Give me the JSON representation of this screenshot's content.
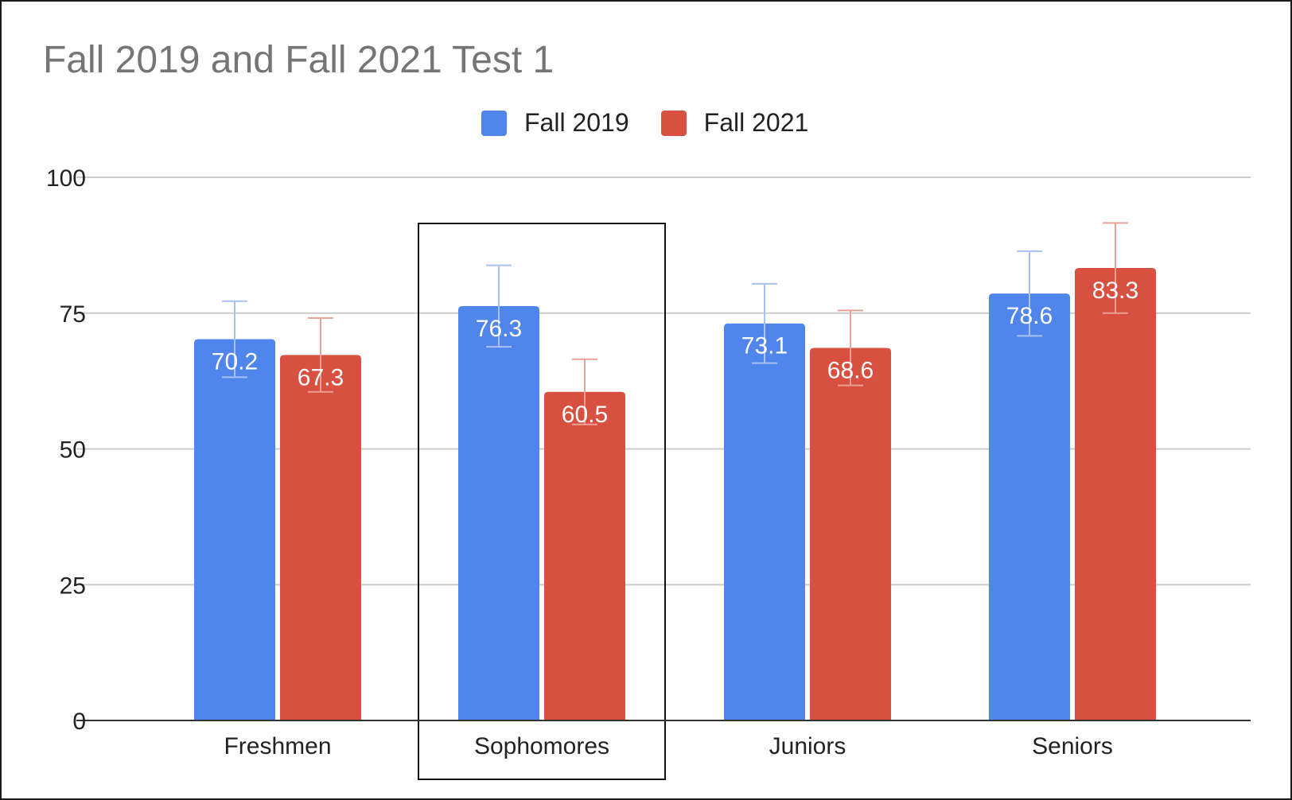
{
  "chart_data": {
    "type": "bar",
    "title": "Fall 2019 and Fall 2021 Test 1",
    "xlabel": "",
    "ylabel": "",
    "categories": [
      "Freshmen",
      "Sophomores",
      "Juniors",
      "Seniors"
    ],
    "series": [
      {
        "name": "Fall 2019",
        "color": "#5085EB",
        "error_color": "#A9C1F4",
        "values": [
          70.2,
          76.3,
          73.1,
          78.6
        ],
        "error_low": [
          63.2,
          68.8,
          65.8,
          70.8
        ],
        "error_high": [
          77.2,
          83.8,
          80.4,
          86.4
        ]
      },
      {
        "name": "Fall 2021",
        "color": "#D85140",
        "error_color": "#EAA096",
        "values": [
          67.3,
          60.5,
          68.6,
          83.3
        ],
        "error_low": [
          60.5,
          54.5,
          61.7,
          75.0
        ],
        "error_high": [
          74.1,
          66.5,
          75.5,
          91.6
        ]
      }
    ],
    "ylim": [
      0,
      100
    ],
    "yticks": [
      0,
      25,
      50,
      75,
      100
    ],
    "grid": true,
    "legend_position": "top-center",
    "data_labels": true,
    "highlighted_category": "Sophomores"
  }
}
